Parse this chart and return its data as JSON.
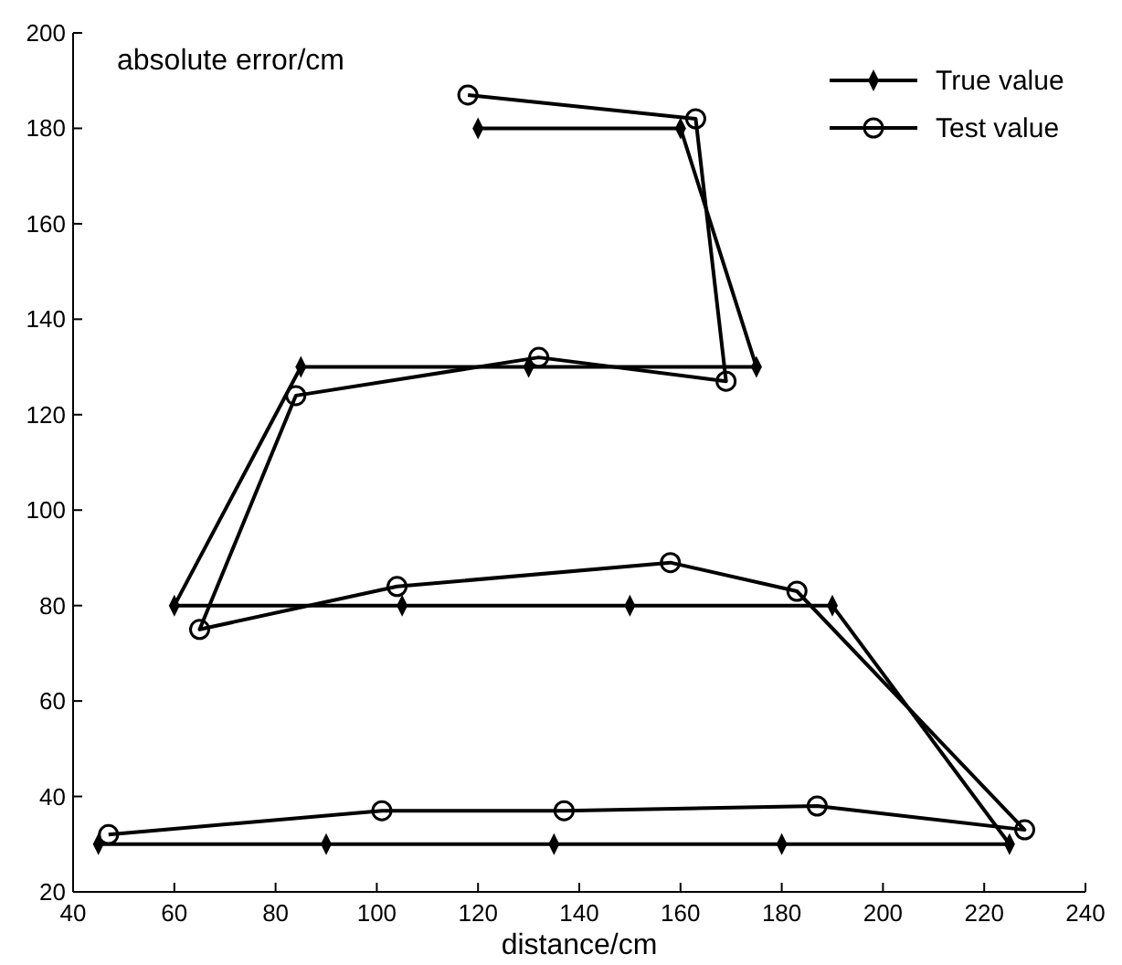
{
  "chart_data": {
    "type": "line",
    "ylabel": "absolute error/cm",
    "xlabel": "distance/cm",
    "xlim": [
      40,
      240
    ],
    "ylim": [
      20,
      200
    ],
    "xticks": [
      40,
      60,
      80,
      100,
      120,
      140,
      160,
      180,
      200,
      220,
      240
    ],
    "yticks": [
      20,
      40,
      60,
      80,
      100,
      120,
      140,
      160,
      180,
      200
    ],
    "legend": "top right",
    "grid": false,
    "line_style": "solid",
    "series": [
      {
        "name": "True value",
        "color": "#000000",
        "marker": "diamond",
        "x": [
          45,
          90,
          135,
          180,
          225,
          190,
          150,
          105,
          60,
          85,
          130,
          175,
          160,
          120
        ],
        "values": [
          30,
          30,
          30,
          30,
          30,
          80,
          80,
          80,
          80,
          130,
          130,
          130,
          180,
          180
        ]
      },
      {
        "name": "Test value",
        "color": "#000000",
        "marker": "circle",
        "x": [
          47,
          101,
          137,
          187,
          228,
          183,
          158,
          104,
          65,
          84,
          132,
          169,
          163,
          118
        ],
        "values": [
          32,
          37,
          37,
          38,
          33,
          83,
          89,
          84,
          75,
          124,
          132,
          127,
          182,
          187
        ]
      }
    ]
  }
}
